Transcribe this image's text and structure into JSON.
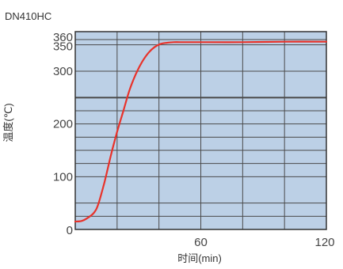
{
  "chart_data": {
    "type": "line",
    "title": "DN410HC",
    "xlabel": "时间(min)",
    "ylabel": "温度(℃)",
    "xlim": [
      0,
      120
    ],
    "ylim": [
      0,
      375
    ],
    "grid": true,
    "x_ticks": [
      {
        "value": 60,
        "label": "60"
      },
      {
        "value": 120,
        "label": "120"
      }
    ],
    "x_grid": [
      0,
      20,
      40,
      60,
      80,
      100,
      120
    ],
    "y_ticks": [
      {
        "value": 0,
        "label": "0"
      },
      {
        "value": 100,
        "label": "100"
      },
      {
        "value": 200,
        "label": "200"
      },
      {
        "value": 300,
        "label": "300"
      },
      {
        "value": 350,
        "label": "350"
      },
      {
        "value": 360,
        "label": "360"
      }
    ],
    "y_grid": [
      25,
      50,
      100,
      125,
      150,
      175,
      200,
      225,
      250,
      300,
      350,
      360
    ],
    "y_grid_heavy": [
      250
    ],
    "series": [
      {
        "color": "#e8322a",
        "x": [
          0,
          3,
          6,
          9,
          11,
          14,
          17,
          20,
          23,
          26,
          29,
          32,
          35,
          38,
          41,
          44,
          47,
          50,
          55,
          60,
          80,
          100,
          120
        ],
        "y": [
          15,
          16,
          22,
          32,
          48,
          90,
          140,
          185,
          225,
          265,
          295,
          318,
          335,
          346,
          352,
          354,
          355,
          355,
          355,
          355,
          355,
          356,
          356
        ]
      }
    ],
    "colors": {
      "plot_background": "#bcd0e6",
      "grid": "#4a4a4a",
      "frame": "#333333"
    }
  }
}
